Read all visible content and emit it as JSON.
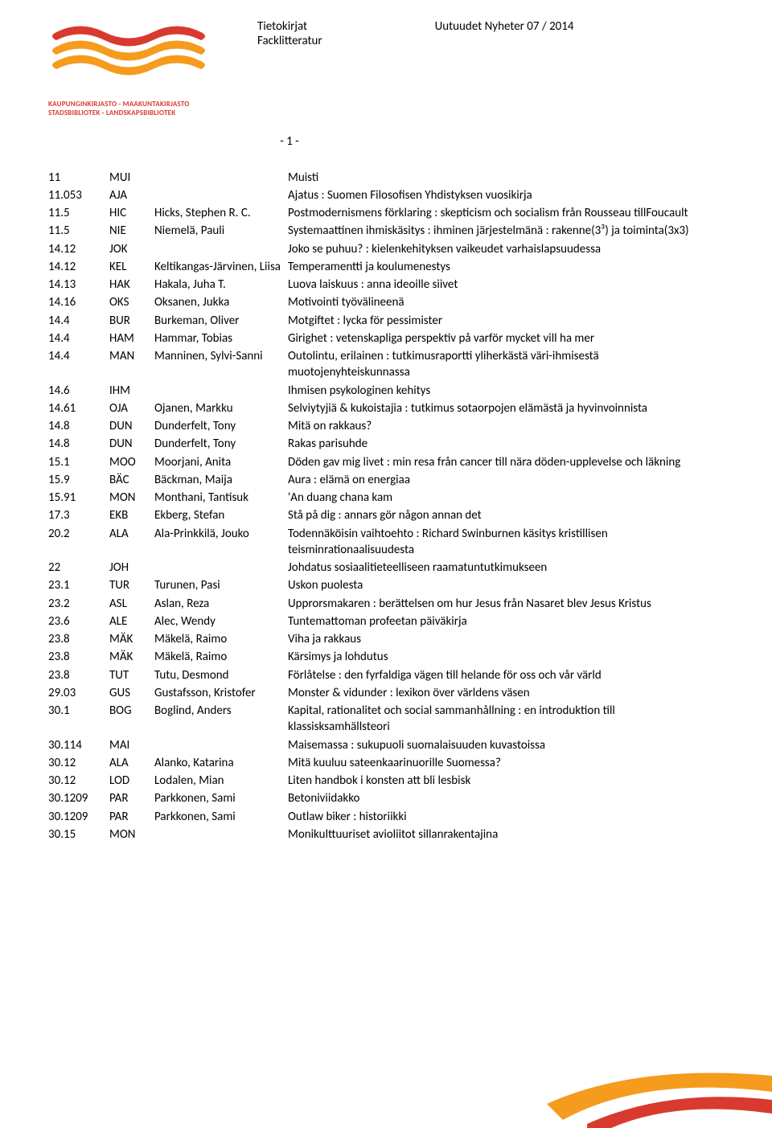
{
  "header": {
    "title_left_line1": "Tietokirjat",
    "title_left_line2": "Facklitteratur",
    "title_right": "Uutuudet Nyheter 07 / 2014",
    "page_number": "- 1 -",
    "logo_text_line1": "KAUPUNGINKIRJASTO - MAAKUNTAKIRJASTO",
    "logo_text_line2": "STADSBIBLIOTEK - LANDSKAPSBIBLIOTEK"
  },
  "colors": {
    "logo_red": "#d93a2f",
    "logo_orange": "#f59b1e",
    "text": "#000000",
    "bg": "#ffffff"
  },
  "rows": [
    {
      "cls": "11",
      "code": "MUI",
      "auth": "",
      "title": "Muisti"
    },
    {
      "cls": "11.053",
      "code": "AJA",
      "auth": "",
      "title": "Ajatus : Suomen Filosofisen Yhdistyksen vuosikirja"
    },
    {
      "cls": "11.5",
      "code": "HIC",
      "auth": "Hicks, Stephen R. C.",
      "title": "Postmodernismens förklaring : skepticism och socialism från Rousseau tillFoucault"
    },
    {
      "cls": "11.5",
      "code": "NIE",
      "auth": "Niemelä, Pauli",
      "title": "Systemaattinen ihmiskäsitys : ihminen järjestelmänä : rakenne(3³) ja toiminta(3x3)"
    },
    {
      "cls": "14.12",
      "code": "JOK",
      "auth": "",
      "title": "Joko se puhuu? : kielenkehityksen vaikeudet varhaislapsuudessa"
    },
    {
      "cls": "14.12",
      "code": "KEL",
      "auth": "Keltikangas-Järvinen, Liisa",
      "title": "Temperamentti ja koulumenestys"
    },
    {
      "cls": "14.13",
      "code": "HAK",
      "auth": "Hakala, Juha T.",
      "title": "Luova laiskuus : anna ideoille siivet"
    },
    {
      "cls": "14.16",
      "code": "OKS",
      "auth": "Oksanen, Jukka",
      "title": "Motivointi työvälineenä"
    },
    {
      "cls": "14.4",
      "code": "BUR",
      "auth": "Burkeman, Oliver",
      "title": "Motgiftet : lycka för pessimister"
    },
    {
      "cls": "14.4",
      "code": "HAM",
      "auth": "Hammar, Tobias",
      "title": "Girighet : vetenskapliga perspektiv på varför mycket vill ha mer"
    },
    {
      "cls": "14.4",
      "code": "MAN",
      "auth": "Manninen, Sylvi-Sanni",
      "title": "Outolintu, erilainen : tutkimusraportti yliherkästä väri-ihmisestä muotojenyhteiskunnassa"
    },
    {
      "cls": "14.6",
      "code": "IHM",
      "auth": "",
      "title": "Ihmisen psykologinen kehitys"
    },
    {
      "cls": "14.61",
      "code": "OJA",
      "auth": "Ojanen, Markku",
      "title": "Selviytyjiä & kukoistajia : tutkimus sotaorpojen elämästä ja hyvinvoinnista"
    },
    {
      "cls": "14.8",
      "code": "DUN",
      "auth": "Dunderfelt, Tony",
      "title": "Mitä on rakkaus?"
    },
    {
      "cls": "14.8",
      "code": "DUN",
      "auth": "Dunderfelt, Tony",
      "title": "Rakas parisuhde"
    },
    {
      "cls": "15.1",
      "code": "MOO",
      "auth": "Moorjani, Anita",
      "title": "Döden gav mig livet : min resa från cancer till nära döden-upplevelse och läkning"
    },
    {
      "cls": "15.9",
      "code": "BÄC",
      "auth": "Bäckman, Maija",
      "title": "Aura : elämä on energiaa"
    },
    {
      "cls": "15.91",
      "code": "MON",
      "auth": "Monthani, Tantisuk",
      "title": "'An duang chana kam"
    },
    {
      "cls": "17.3",
      "code": "EKB",
      "auth": "Ekberg, Stefan",
      "title": "Stå på dig : annars gör någon annan det"
    },
    {
      "cls": "20.2",
      "code": "ALA",
      "auth": "Ala-Prinkkilä, Jouko",
      "title": "Todennäköisin vaihtoehto : Richard Swinburnen käsitys kristillisen teisminrationaalisuudesta"
    },
    {
      "cls": "22",
      "code": "JOH",
      "auth": "",
      "title": "Johdatus sosiaalitieteelliseen raamatuntutkimukseen"
    },
    {
      "cls": "23.1",
      "code": "TUR",
      "auth": "Turunen, Pasi",
      "title": "Uskon puolesta"
    },
    {
      "cls": "23.2",
      "code": "ASL",
      "auth": "Aslan, Reza",
      "title": "Upprorsmakaren : berättelsen om hur Jesus från Nasaret blev Jesus Kristus"
    },
    {
      "cls": "23.6",
      "code": "ALE",
      "auth": "Alec, Wendy",
      "title": "Tuntemattoman profeetan päiväkirja"
    },
    {
      "cls": "23.8",
      "code": "MÄK",
      "auth": "Mäkelä, Raimo",
      "title": "Viha ja rakkaus"
    },
    {
      "cls": "23.8",
      "code": "MÄK",
      "auth": "Mäkelä, Raimo",
      "title": "Kärsimys ja lohdutus"
    },
    {
      "cls": "23.8",
      "code": "TUT",
      "auth": "Tutu, Desmond",
      "title": "Förlåtelse : den fyrfaldiga vägen till helande för oss och vår värld"
    },
    {
      "cls": "29.03",
      "code": "GUS",
      "auth": "Gustafsson, Kristofer",
      "title": "Monster & vidunder : lexikon över världens väsen"
    },
    {
      "cls": "30.1",
      "code": "BOG",
      "auth": "Boglind, Anders",
      "title": "Kapital, rationalitet och social sammanhållning : en introduktion till klassisksamhällsteori"
    },
    {
      "cls": "30.114",
      "code": "MAI",
      "auth": "",
      "title": "Maisemassa : sukupuoli suomalaisuuden kuvastoissa"
    },
    {
      "cls": "30.12",
      "code": "ALA",
      "auth": "Alanko, Katarina",
      "title": "Mitä kuuluu sateenkaarinuorille Suomessa?"
    },
    {
      "cls": "30.12",
      "code": "LOD",
      "auth": "Lodalen, Mian",
      "title": "Liten handbok i konsten att bli lesbisk"
    },
    {
      "cls": "30.1209",
      "code": "PAR",
      "auth": "Parkkonen, Sami",
      "title": "Betoniviidakko"
    },
    {
      "cls": "30.1209",
      "code": "PAR",
      "auth": "Parkkonen, Sami",
      "title": "Outlaw biker : historiikki"
    },
    {
      "cls": "30.15",
      "code": "MON",
      "auth": "",
      "title": "Monikulttuuriset avioliitot sillanrakentajina"
    }
  ]
}
